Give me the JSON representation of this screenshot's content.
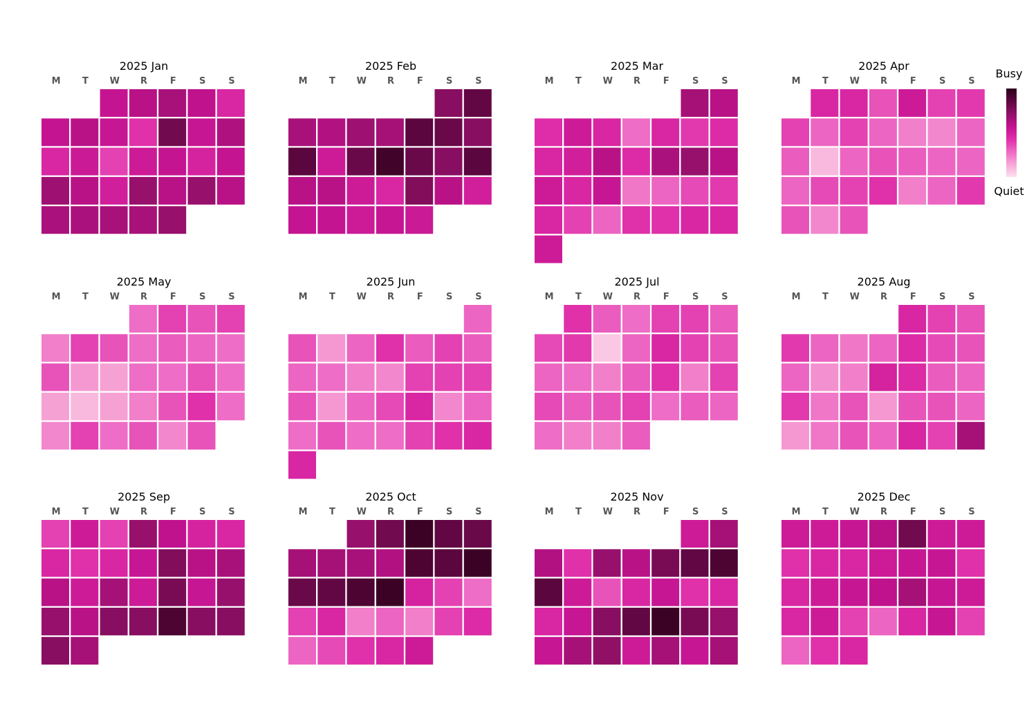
{
  "chart_data": {
    "type": "heatmap",
    "subtype": "calendar",
    "year": 2025,
    "weekday_labels": [
      "M",
      "T",
      "W",
      "R",
      "F",
      "S",
      "S"
    ],
    "legend": {
      "high_label": "Busy",
      "low_label": "Quiet",
      "placement": "right"
    },
    "colormap": [
      "#fde0ef",
      "#f7a8d6",
      "#ee6bc5",
      "#df2ca8",
      "#c3128f",
      "#921068",
      "#5c063f",
      "#2a0018"
    ],
    "value_range": [
      0,
      1
    ],
    "months": [
      {
        "title": "2025 Jan",
        "start_weekday": 2,
        "values": [
          0.56,
          0.6,
          0.65,
          0.58,
          0.46,
          0.56,
          0.6,
          0.55,
          0.42,
          0.8,
          0.55,
          0.63,
          0.46,
          0.53,
          0.38,
          0.52,
          0.56,
          0.48,
          0.56,
          0.68,
          0.6,
          0.5,
          0.7,
          0.6,
          0.7,
          0.6,
          0.64,
          0.64,
          0.65,
          0.65,
          0.7
        ]
      },
      {
        "title": "2025 Feb",
        "start_weekday": 5,
        "values": [
          0.74,
          0.84,
          0.65,
          0.62,
          0.68,
          0.66,
          0.86,
          0.82,
          0.74,
          0.86,
          0.52,
          0.82,
          0.93,
          0.82,
          0.74,
          0.86,
          0.6,
          0.6,
          0.52,
          0.46,
          0.76,
          0.6,
          0.5,
          0.56,
          0.56,
          0.52,
          0.55,
          0.53
        ]
      },
      {
        "title": "2025 Mar",
        "start_weekday": 5,
        "values": [
          0.66,
          0.6,
          0.43,
          0.52,
          0.46,
          0.28,
          0.46,
          0.4,
          0.44,
          0.46,
          0.5,
          0.6,
          0.44,
          0.64,
          0.7,
          0.6,
          0.52,
          0.46,
          0.55,
          0.26,
          0.3,
          0.36,
          0.4,
          0.46,
          0.38,
          0.3,
          0.42,
          0.42,
          0.46,
          0.46,
          0.52
        ]
      },
      {
        "title": "2025 Apr",
        "start_weekday": 1,
        "values": [
          0.46,
          0.46,
          0.34,
          0.52,
          0.38,
          0.4,
          0.38,
          0.3,
          0.38,
          0.3,
          0.24,
          0.22,
          0.3,
          0.32,
          0.1,
          0.3,
          0.34,
          0.32,
          0.3,
          0.3,
          0.3,
          0.36,
          0.38,
          0.42,
          0.24,
          0.3,
          0.4,
          0.34,
          0.22,
          0.34
        ]
      },
      {
        "title": "2025 May",
        "start_weekday": 3,
        "values": [
          0.28,
          0.38,
          0.34,
          0.38,
          0.24,
          0.38,
          0.34,
          0.28,
          0.32,
          0.3,
          0.28,
          0.34,
          0.18,
          0.16,
          0.28,
          0.28,
          0.34,
          0.28,
          0.16,
          0.1,
          0.16,
          0.24,
          0.34,
          0.42,
          0.28,
          0.22,
          0.38,
          0.28,
          0.34,
          0.22,
          0.34
        ]
      },
      {
        "title": "2025 Jun",
        "start_weekday": 6,
        "values": [
          0.3,
          0.34,
          0.18,
          0.3,
          0.42,
          0.32,
          0.38,
          0.32,
          0.3,
          0.28,
          0.24,
          0.22,
          0.38,
          0.38,
          0.38,
          0.34,
          0.18,
          0.3,
          0.36,
          0.46,
          0.22,
          0.3,
          0.28,
          0.34,
          0.28,
          0.28,
          0.38,
          0.42,
          0.46,
          0.46
        ]
      },
      {
        "title": "2025 Jul",
        "start_weekday": 1,
        "values": [
          0.42,
          0.32,
          0.28,
          0.38,
          0.38,
          0.32,
          0.36,
          0.4,
          0.06,
          0.3,
          0.46,
          0.38,
          0.34,
          0.3,
          0.28,
          0.24,
          0.32,
          0.42,
          0.24,
          0.38,
          0.36,
          0.32,
          0.34,
          0.38,
          0.28,
          0.32,
          0.3,
          0.28,
          0.24,
          0.24,
          0.32
        ]
      },
      {
        "title": "2025 Aug",
        "start_weekday": 4,
        "values": [
          0.46,
          0.38,
          0.34,
          0.4,
          0.3,
          0.26,
          0.3,
          0.44,
          0.36,
          0.34,
          0.3,
          0.2,
          0.24,
          0.48,
          0.44,
          0.32,
          0.3,
          0.4,
          0.26,
          0.34,
          0.18,
          0.34,
          0.34,
          0.3,
          0.18,
          0.26,
          0.34,
          0.3,
          0.46,
          0.38,
          0.66
        ]
      },
      {
        "title": "2025 Sep",
        "start_weekday": 0,
        "values": [
          0.38,
          0.52,
          0.38,
          0.7,
          0.58,
          0.48,
          0.46,
          0.46,
          0.42,
          0.46,
          0.55,
          0.76,
          0.6,
          0.65,
          0.6,
          0.52,
          0.66,
          0.52,
          0.78,
          0.55,
          0.7,
          0.7,
          0.6,
          0.74,
          0.74,
          0.9,
          0.74,
          0.74,
          0.74,
          0.66
        ]
      },
      {
        "title": "2025 Oct",
        "start_weekday": 2,
        "values": [
          0.7,
          0.8,
          0.95,
          0.84,
          0.82,
          0.66,
          0.66,
          0.65,
          0.62,
          0.9,
          0.86,
          0.95,
          0.82,
          0.84,
          0.9,
          0.95,
          0.48,
          0.38,
          0.28,
          0.38,
          0.46,
          0.24,
          0.3,
          0.24,
          0.38,
          0.44,
          0.3,
          0.36,
          0.42,
          0.46,
          0.52
        ]
      },
      {
        "title": "2025 Nov",
        "start_weekday": 5,
        "values": [
          0.52,
          0.66,
          0.62,
          0.42,
          0.7,
          0.6,
          0.78,
          0.84,
          0.9,
          0.86,
          0.52,
          0.34,
          0.46,
          0.55,
          0.42,
          0.46,
          0.46,
          0.55,
          0.74,
          0.84,
          0.95,
          0.78,
          0.7,
          0.55,
          0.66,
          0.72,
          0.52,
          0.66,
          0.55,
          0.66
        ]
      },
      {
        "title": "2025 Dec",
        "start_weekday": 0,
        "values": [
          0.52,
          0.52,
          0.55,
          0.6,
          0.8,
          0.52,
          0.52,
          0.42,
          0.46,
          0.46,
          0.52,
          0.55,
          0.55,
          0.42,
          0.46,
          0.52,
          0.55,
          0.58,
          0.66,
          0.55,
          0.52,
          0.46,
          0.52,
          0.38,
          0.3,
          0.46,
          0.55,
          0.38,
          0.3,
          0.42,
          0.46
        ]
      }
    ]
  }
}
